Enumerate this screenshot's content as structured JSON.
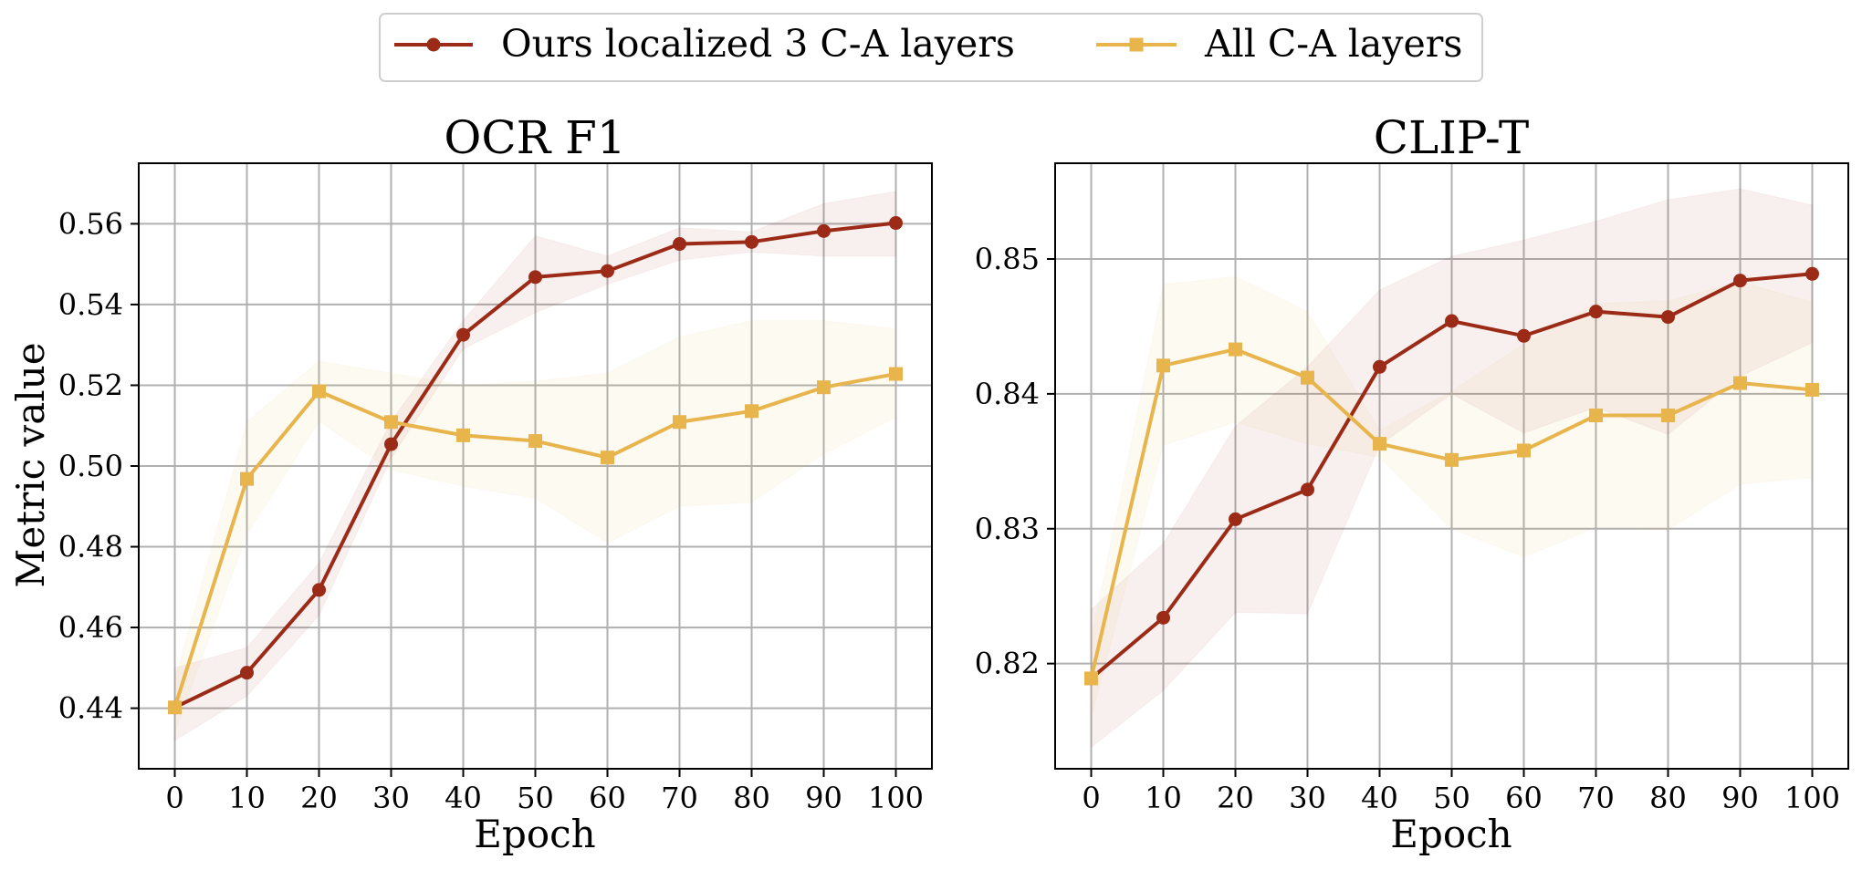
{
  "figure": {
    "ylabel": "Metric value",
    "legend": {
      "placement": "top-center",
      "entries": [
        {
          "label": "Ours localized 3 C-A layers",
          "color": "#9b2a16",
          "marker": "circle"
        },
        {
          "label": "All C-A layers",
          "color": "#e8b44c",
          "marker": "square"
        }
      ]
    }
  },
  "chart_data": [
    {
      "type": "line",
      "title": "OCR F1",
      "xlabel": "Epoch",
      "ylabel": "Metric value",
      "x": [
        0,
        10,
        20,
        30,
        40,
        50,
        60,
        70,
        80,
        90,
        100
      ],
      "xlim": [
        -5,
        105
      ],
      "ylim": [
        0.425,
        0.575
      ],
      "xticks": [
        "0",
        "10",
        "20",
        "30",
        "40",
        "50",
        "60",
        "70",
        "80",
        "90",
        "100"
      ],
      "yticks": [
        "0.44",
        "0.46",
        "0.48",
        "0.50",
        "0.52",
        "0.54",
        "0.56"
      ],
      "grid": true,
      "series": [
        {
          "name": "Ours localized 3 C-A layers",
          "color": "#9b2a16",
          "marker": "circle",
          "values": [
            0.4402,
            0.4488,
            0.4693,
            0.5054,
            0.5325,
            0.5468,
            0.5483,
            0.555,
            0.5555,
            0.5582,
            0.5602
          ],
          "lower": [
            0.432,
            0.443,
            0.463,
            0.502,
            0.529,
            0.538,
            0.545,
            0.551,
            0.553,
            0.552,
            0.552
          ],
          "upper": [
            0.45,
            0.455,
            0.476,
            0.511,
            0.536,
            0.557,
            0.552,
            0.559,
            0.558,
            0.565,
            0.568
          ]
        },
        {
          "name": "All C-A layers",
          "color": "#e8b44c",
          "marker": "square",
          "values": [
            0.4402,
            0.4968,
            0.5185,
            0.5109,
            0.5076,
            0.5062,
            0.5021,
            0.5109,
            0.5136,
            0.5195,
            0.5228
          ],
          "lower": [
            0.434,
            0.483,
            0.511,
            0.499,
            0.495,
            0.492,
            0.481,
            0.49,
            0.491,
            0.503,
            0.512
          ],
          "upper": [
            0.447,
            0.511,
            0.526,
            0.523,
            0.52,
            0.521,
            0.523,
            0.532,
            0.536,
            0.536,
            0.534
          ]
        }
      ]
    },
    {
      "type": "line",
      "title": "CLIP-T",
      "xlabel": "Epoch",
      "ylabel": "",
      "x": [
        0,
        10,
        20,
        30,
        40,
        50,
        60,
        70,
        80,
        90,
        100
      ],
      "xlim": [
        -5,
        105
      ],
      "ylim": [
        0.8122,
        0.8571
      ],
      "xticks": [
        "0",
        "10",
        "20",
        "30",
        "40",
        "50",
        "60",
        "70",
        "80",
        "90",
        "100"
      ],
      "yticks": [
        "0.82",
        "0.83",
        "0.84",
        "0.85"
      ],
      "grid": true,
      "series": [
        {
          "name": "Ours localized 3 C-A layers",
          "color": "#9b2a16",
          "marker": "circle",
          "values": [
            0.8189,
            0.8234,
            0.8307,
            0.8329,
            0.842,
            0.8454,
            0.8443,
            0.8461,
            0.8457,
            0.8484,
            0.8489
          ],
          "lower": [
            0.8138,
            0.818,
            0.8238,
            0.8237,
            0.8362,
            0.84,
            0.8371,
            0.839,
            0.837,
            0.8413,
            0.8438
          ],
          "upper": [
            0.824,
            0.8289,
            0.8376,
            0.842,
            0.8477,
            0.8502,
            0.8514,
            0.8528,
            0.8544,
            0.8552,
            0.854
          ]
        },
        {
          "name": "All C-A layers",
          "color": "#e8b44c",
          "marker": "square",
          "values": [
            0.8189,
            0.8421,
            0.8433,
            0.8412,
            0.8363,
            0.8351,
            0.8358,
            0.8384,
            0.8384,
            0.8408,
            0.8403
          ],
          "lower": [
            0.816,
            0.8362,
            0.8379,
            0.8363,
            0.8353,
            0.83,
            0.8279,
            0.8301,
            0.8299,
            0.8333,
            0.8338
          ],
          "upper": [
            0.8218,
            0.8481,
            0.8487,
            0.8461,
            0.8373,
            0.8402,
            0.8437,
            0.8467,
            0.8469,
            0.8483,
            0.8468
          ]
        }
      ]
    }
  ]
}
